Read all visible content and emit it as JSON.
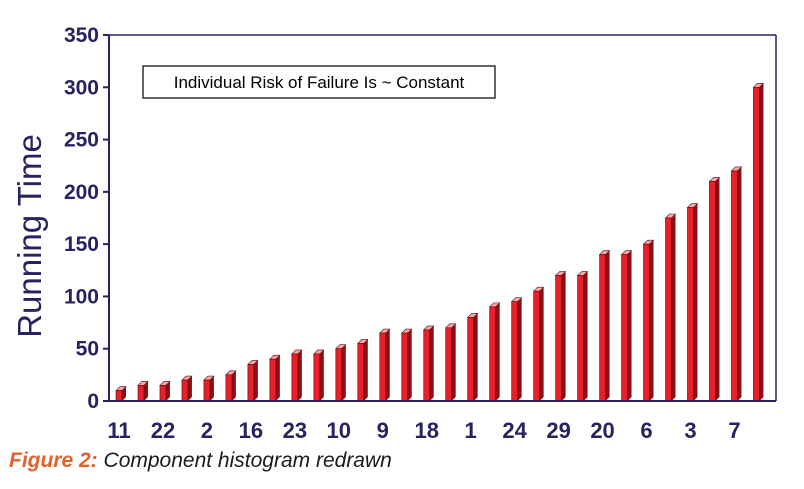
{
  "chart_data": {
    "type": "bar",
    "annotation": "Individual Risk of Failure Is ~ Constant",
    "ylabel": "Running Time",
    "xlabel": "",
    "ylim": [
      0,
      350
    ],
    "yticks": [
      "0",
      "50",
      "100",
      "150",
      "200",
      "250",
      "300",
      "350"
    ],
    "xtick_labels": [
      "11",
      "22",
      "2",
      "16",
      "23",
      "10",
      "9",
      "18",
      "1",
      "24",
      "29",
      "20",
      "6",
      "3",
      "7"
    ],
    "values": [
      10,
      15,
      15,
      20,
      20,
      25,
      35,
      40,
      45,
      45,
      50,
      55,
      65,
      65,
      68,
      70,
      80,
      90,
      95,
      105,
      120,
      120,
      140,
      140,
      150,
      175,
      185,
      210,
      220,
      300
    ],
    "bar_color": "#e8202a",
    "bar_side_color": "#8a1015",
    "axis_color": "#27235f",
    "grid": false
  },
  "caption": {
    "label": "Figure 2:",
    "text": " Component histogram redrawn",
    "label_color": "#e2622a"
  }
}
